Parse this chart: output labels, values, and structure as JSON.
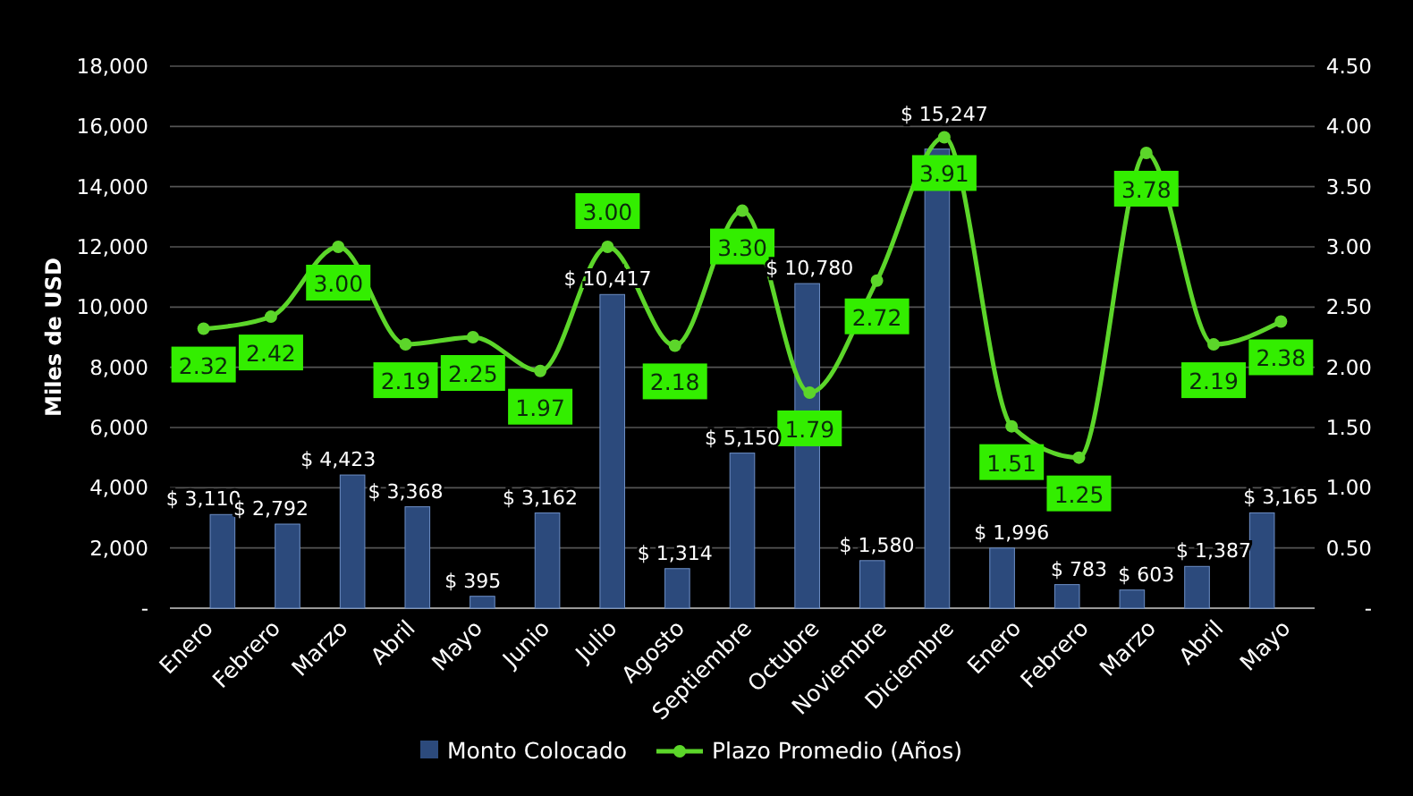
{
  "chart_data": {
    "type": "bar",
    "ylabel": "Miles de USD",
    "categories": [
      "Enero",
      "Febrero",
      "Marzo",
      "Abril",
      "Mayo",
      "Junio",
      "Julio",
      "Agosto",
      "Septiembre",
      "Octubre",
      "Noviembre",
      "Diciembre",
      "Enero",
      "Febrero",
      "Marzo",
      "Abril",
      "Mayo"
    ],
    "series": [
      {
        "name": "Monto Colocado",
        "color": "#2c4a7c",
        "values": [
          3110,
          2792,
          4423,
          3368,
          395,
          3162,
          10417,
          1314,
          5150,
          10780,
          1580,
          15247,
          1996,
          783,
          603,
          1387,
          3165
        ],
        "value_labels": [
          "$ 3,110",
          "$ 2,792",
          "$ 4,423",
          "$ 3,368",
          "$ 395",
          "$ 3,162",
          "$ 10,417",
          "$ 1,314",
          "$ 5,150",
          "$ 10,780",
          "$ 1,580",
          "$ 15,247",
          "$ 1,996",
          "$ 783",
          "$ 603",
          "$ 1,387",
          "$ 3,165"
        ]
      },
      {
        "name": "Plazo Promedio (Años)",
        "type": "line",
        "axis": "y2",
        "color": "#5cd62a",
        "values": [
          2.32,
          2.42,
          3.0,
          2.19,
          2.25,
          1.97,
          3.0,
          2.18,
          3.3,
          1.79,
          2.72,
          3.91,
          1.51,
          1.25,
          3.78,
          2.19,
          2.38
        ],
        "value_labels": [
          "2.32",
          "2.42",
          "3.00",
          "2.19",
          "2.25",
          "1.97",
          "3.00",
          "2.18",
          "3.30",
          "1.79",
          "2.72",
          "3.91",
          "1.51",
          "1.25",
          "3.78",
          "2.19",
          "2.38"
        ]
      }
    ],
    "ylim": [
      0,
      18000
    ],
    "yticks": [
      {
        "value": 0,
        "label": "-"
      },
      {
        "value": 2000,
        "label": "2,000"
      },
      {
        "value": 4000,
        "label": "4,000"
      },
      {
        "value": 6000,
        "label": "6,000"
      },
      {
        "value": 8000,
        "label": "8,000"
      },
      {
        "value": 10000,
        "label": "10,000"
      },
      {
        "value": 12000,
        "label": "12,000"
      },
      {
        "value": 14000,
        "label": "14,000"
      },
      {
        "value": 16000,
        "label": "16,000"
      },
      {
        "value": 18000,
        "label": "18,000"
      }
    ],
    "y2lim": [
      0,
      4.5
    ],
    "y2ticks": [
      {
        "value": 0,
        "label": "-"
      },
      {
        "value": 0.5,
        "label": "0.50"
      },
      {
        "value": 1,
        "label": "1.00"
      },
      {
        "value": 1.5,
        "label": "1.50"
      },
      {
        "value": 2,
        "label": "2.00"
      },
      {
        "value": 2.5,
        "label": "2.50"
      },
      {
        "value": 3,
        "label": "3.00"
      },
      {
        "value": 3.5,
        "label": "3.50"
      },
      {
        "value": 4,
        "label": "4.00"
      },
      {
        "value": 4.5,
        "label": "4.50"
      }
    ],
    "grid": "y",
    "legend": "bottom",
    "marker": "circle"
  }
}
